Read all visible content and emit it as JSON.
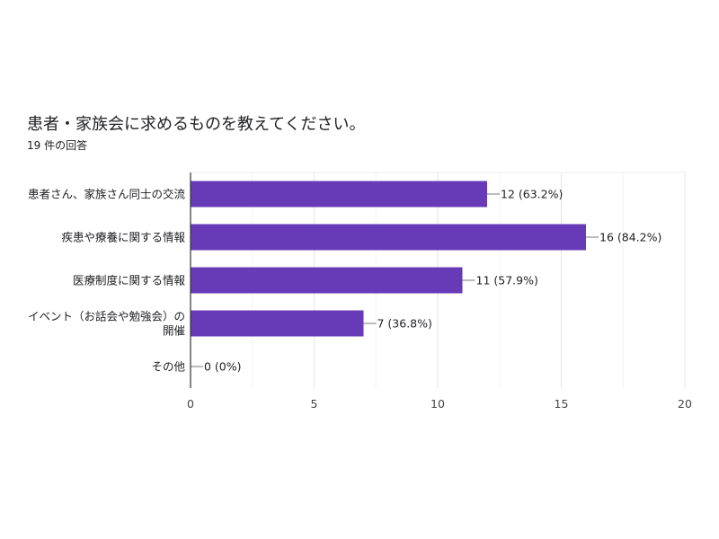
{
  "chart_data": {
    "type": "bar",
    "orientation": "horizontal",
    "title": "患者・家族会に求めるものを教えてください。",
    "subtitle": "19 件の回答",
    "categories": [
      [
        "患者さん、家族さん同士の交流"
      ],
      [
        "疾患や療養に関する情報"
      ],
      [
        "医療制度に関する情報"
      ],
      [
        "イベント（お話会や勉強会）の",
        "開催"
      ],
      [
        "その他"
      ]
    ],
    "values": [
      12,
      16,
      11,
      7,
      0
    ],
    "value_labels": [
      "12 (63.2%)",
      "16 (84.2%)",
      "11 (57.9%)",
      "7 (36.8%)",
      "0 (0%)"
    ],
    "xlim": [
      0,
      20
    ],
    "xticks": [
      0,
      5,
      10,
      15,
      20
    ],
    "xtick_labels": [
      "0",
      "5",
      "10",
      "15",
      "20"
    ],
    "grid": true,
    "bar_color": "#673ab7"
  }
}
